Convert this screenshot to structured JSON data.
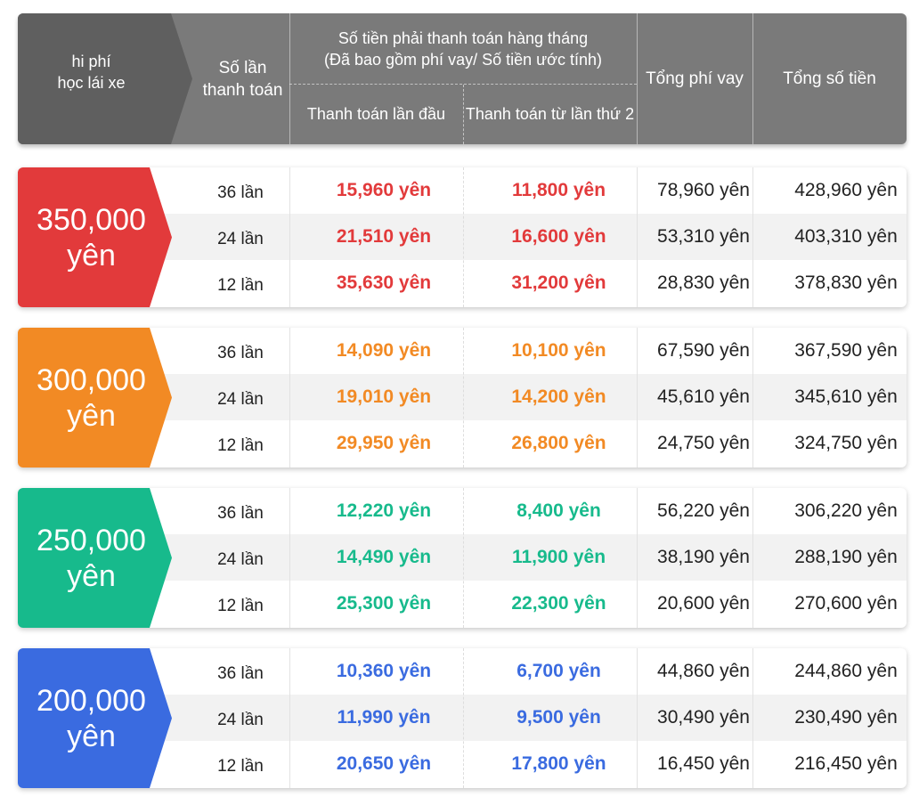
{
  "header": {
    "fee_label": "hi phí\nhọc lái xe",
    "times_label": "Số lần\nthanh toán",
    "monthly_label": "Số tiền phải thanh toán hàng tháng\n(Đã bao gồm phí vay/ Số tiền ước tính)",
    "first_label": "Thanh toán lần đầu",
    "second_label": "Thanh toán từ lần thứ 2",
    "loan_fee_label": "Tổng phí vay",
    "total_label": "Tổng số tiền",
    "bg_color": "#7a7a7a"
  },
  "groups": [
    {
      "label": "350,000\nyên",
      "color": "#e23a3b",
      "rows": [
        {
          "times": "36 lần",
          "first": "15,960 yên",
          "second": "11,800 yên",
          "fee": "78,960 yên",
          "total": "428,960 yên"
        },
        {
          "times": "24 lần",
          "first": "21,510 yên",
          "second": "16,600 yên",
          "fee": "53,310 yên",
          "total": "403,310 yên"
        },
        {
          "times": "12 lần",
          "first": "35,630 yên",
          "second": "31,200 yên",
          "fee": "28,830 yên",
          "total": "378,830 yên"
        }
      ]
    },
    {
      "label": "300,000\nyên",
      "color": "#f28a24",
      "rows": [
        {
          "times": "36 lần",
          "first": "14,090 yên",
          "second": "10,100 yên",
          "fee": "67,590 yên",
          "total": "367,590 yên"
        },
        {
          "times": "24 lần",
          "first": "19,010 yên",
          "second": "14,200 yên",
          "fee": "45,610 yên",
          "total": "345,610 yên"
        },
        {
          "times": "12 lần",
          "first": "29,950 yên",
          "second": "26,800 yên",
          "fee": "24,750 yên",
          "total": "324,750 yên"
        }
      ]
    },
    {
      "label": "250,000\nyên",
      "color": "#17ba8c",
      "rows": [
        {
          "times": "36 lần",
          "first": "12,220 yên",
          "second": "8,400 yên",
          "fee": "56,220 yên",
          "total": "306,220 yên"
        },
        {
          "times": "24 lần",
          "first": "14,490 yên",
          "second": "11,900 yên",
          "fee": "38,190 yên",
          "total": "288,190 yên"
        },
        {
          "times": "12 lần",
          "first": "25,300 yên",
          "second": "22,300 yên",
          "fee": "20,600 yên",
          "total": "270,600 yên"
        }
      ]
    },
    {
      "label": "200,000\nyên",
      "color": "#3a6be0",
      "rows": [
        {
          "times": "36 lần",
          "first": "10,360 yên",
          "second": "6,700 yên",
          "fee": "44,860 yên",
          "total": "244,860 yên"
        },
        {
          "times": "24 lần",
          "first": "11,990 yên",
          "second": "9,500 yên",
          "fee": "30,490 yên",
          "total": "230,490 yên"
        },
        {
          "times": "12 lần",
          "first": "20,650 yên",
          "second": "17,800 yên",
          "fee": "16,450 yên",
          "total": "216,450 yên"
        }
      ]
    }
  ]
}
